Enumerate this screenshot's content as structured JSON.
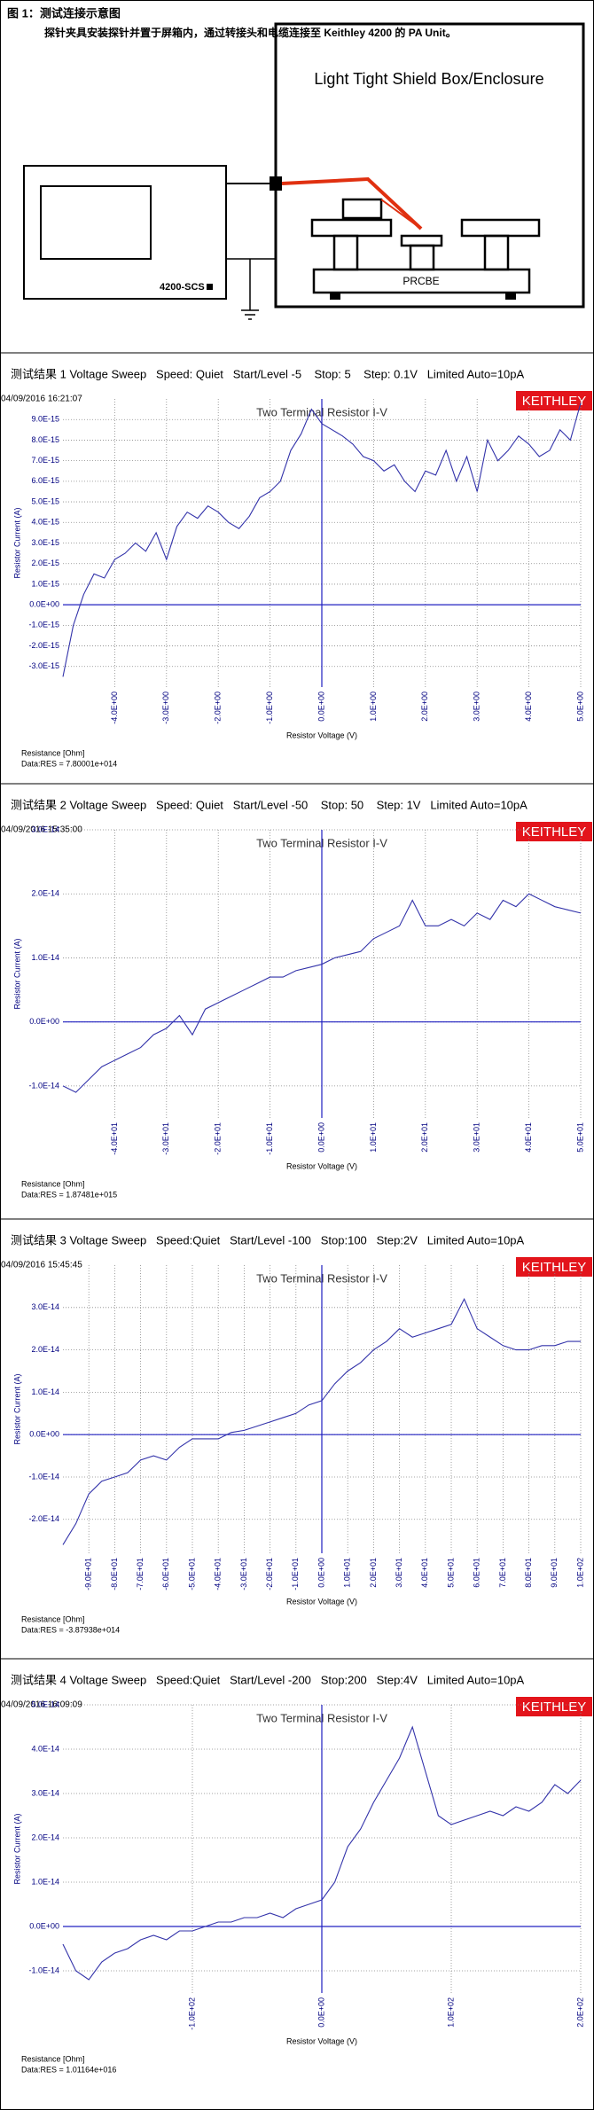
{
  "figure": {
    "title": "图 1：测试连接示意图",
    "caption": "探针夹具安装探针并置于屏箱内，通过转接头和电缆连接至 Keithley 4200 的 PA Unit。",
    "enclosure": "Light Tight Shield Box/Enclosure",
    "instrument": "4200-SCS",
    "stage": "PRCBE"
  },
  "chart_data": [
    {
      "type": "line",
      "header": "测试结果 1 Voltage Sweep   Speed: Quiet   Start/Level -5    Stop: 5    Step: 0.1V   Limited Auto=10pA",
      "timestamp": "04/09/2016 16:21:07",
      "logo": "KEITHLEY",
      "title": "Two Terminal Resistor I-V",
      "x_label": "Resistor Voltage (V)",
      "y_label": "Resistor Current (A)",
      "notes": [
        "Resistance [Ohm]",
        "Data:RES = 7.80001e+014"
      ],
      "color": "#3333aa",
      "grid": true,
      "x": [
        -5,
        -4.8,
        -4.6,
        -4.4,
        -4.2,
        -4,
        -3.8,
        -3.6,
        -3.4,
        -3.2,
        -3,
        -2.8,
        -2.6,
        -2.4,
        -2.2,
        -2,
        -1.8,
        -1.6,
        -1.4,
        -1.2,
        -1,
        -0.8,
        -0.6,
        -0.4,
        -0.2,
        0,
        0.2,
        0.4,
        0.6,
        0.8,
        1,
        1.2,
        1.4,
        1.6,
        1.8,
        2,
        2.2,
        2.4,
        2.6,
        2.8,
        3,
        3.2,
        3.4,
        3.6,
        3.8,
        4,
        4.2,
        4.4,
        4.6,
        4.8,
        5
      ],
      "values": [
        -3.5e-15,
        -1e-15,
        5e-16,
        1.5e-15,
        1.3e-15,
        2.2e-15,
        2.5e-15,
        3e-15,
        2.6e-15,
        3.5e-15,
        2.2e-15,
        3.8e-15,
        4.5e-15,
        4.2e-15,
        4.8e-15,
        4.5e-15,
        4e-15,
        3.7e-15,
        4.3e-15,
        5.2e-15,
        5.5e-15,
        6e-15,
        7.5e-15,
        8.3e-15,
        9.5e-15,
        8.8e-15,
        8.5e-15,
        8.2e-15,
        7.8e-15,
        7.2e-15,
        7e-15,
        6.5e-15,
        6.8e-15,
        6e-15,
        5.5e-15,
        6.5e-15,
        6.3e-15,
        7.5e-15,
        6e-15,
        7.2e-15,
        5.5e-15,
        8e-15,
        7e-15,
        7.5e-15,
        8.2e-15,
        7.8e-15,
        7.2e-15,
        7.5e-15,
        8.5e-15,
        8e-15,
        9.8e-15
      ],
      "xlim": [
        -5,
        5
      ],
      "ylim": [
        -4e-15,
        1e-14
      ],
      "xticks": [
        {
          "value": -4,
          "label": "-4.0E+00"
        },
        {
          "value": -3,
          "label": "-3.0E+00"
        },
        {
          "value": -2,
          "label": "-2.0E+00"
        },
        {
          "value": -1,
          "label": "-1.0E+00"
        },
        {
          "value": 0,
          "label": "0.0E+00"
        },
        {
          "value": 1,
          "label": "1.0E+00"
        },
        {
          "value": 2,
          "label": "2.0E+00"
        },
        {
          "value": 3,
          "label": "3.0E+00"
        },
        {
          "value": 4,
          "label": "4.0E+00"
        },
        {
          "value": 5,
          "label": "5.0E+00"
        }
      ],
      "yticks": [
        {
          "value": -3e-15,
          "label": "-3.0E-15"
        },
        {
          "value": -2e-15,
          "label": "-2.0E-15"
        },
        {
          "value": -1e-15,
          "label": "-1.0E-15"
        },
        {
          "value": 0,
          "label": "0.0E+00"
        },
        {
          "value": 1e-15,
          "label": "1.0E-15"
        },
        {
          "value": 2e-15,
          "label": "2.0E-15"
        },
        {
          "value": 3e-15,
          "label": "3.0E-15"
        },
        {
          "value": 4e-15,
          "label": "4.0E-15"
        },
        {
          "value": 5e-15,
          "label": "5.0E-15"
        },
        {
          "value": 6e-15,
          "label": "6.0E-15"
        },
        {
          "value": 7e-15,
          "label": "7.0E-15"
        },
        {
          "value": 8e-15,
          "label": "8.0E-15"
        },
        {
          "value": 9e-15,
          "label": "9.0E-15"
        }
      ]
    },
    {
      "type": "line",
      "header": "测试结果 2 Voltage Sweep   Speed: Quiet   Start/Level -50    Stop: 50    Step: 1V   Limited Auto=10pA",
      "timestamp": "04/09/2016 15:35:00",
      "logo": "KEITHLEY",
      "title": "Two Terminal Resistor I-V",
      "x_label": "Resistor Voltage (V)",
      "y_label": "Resistor Current (A)",
      "notes": [
        "Resistance [Ohm]",
        "Data:RES = 1.87481e+015"
      ],
      "color": "#3333aa",
      "grid": true,
      "x": [
        -50,
        -47.5,
        -45,
        -42.5,
        -40,
        -37.5,
        -35,
        -32.5,
        -30,
        -27.5,
        -25,
        -22.5,
        -20,
        -17.5,
        -15,
        -12.5,
        -10,
        -7.5,
        -5,
        -2.5,
        0,
        2.5,
        5,
        7.5,
        10,
        12.5,
        15,
        17.5,
        20,
        22.5,
        25,
        27.5,
        30,
        32.5,
        35,
        37.5,
        40,
        42.5,
        45,
        47.5,
        50
      ],
      "values": [
        -1e-14,
        -1.1e-14,
        -9e-15,
        -7e-15,
        -6e-15,
        -5e-15,
        -4e-15,
        -2e-15,
        -1e-15,
        1e-15,
        -2e-15,
        2e-15,
        3e-15,
        4e-15,
        5e-15,
        6e-15,
        7e-15,
        7e-15,
        8e-15,
        8.5e-15,
        9e-15,
        1e-14,
        1.05e-14,
        1.1e-14,
        1.3e-14,
        1.4e-14,
        1.5e-14,
        1.9e-14,
        1.5e-14,
        1.5e-14,
        1.6e-14,
        1.5e-14,
        1.7e-14,
        1.6e-14,
        1.9e-14,
        1.8e-14,
        2e-14,
        1.9e-14,
        1.8e-14,
        1.75e-14,
        1.7e-14
      ],
      "xlim": [
        -50,
        50
      ],
      "ylim": [
        -1.5e-14,
        3e-14
      ],
      "xticks": [
        {
          "value": -40,
          "label": "-4.0E+01"
        },
        {
          "value": -30,
          "label": "-3.0E+01"
        },
        {
          "value": -20,
          "label": "-2.0E+01"
        },
        {
          "value": -10,
          "label": "-1.0E+01"
        },
        {
          "value": 0,
          "label": "0.0E+00"
        },
        {
          "value": 10,
          "label": "1.0E+01"
        },
        {
          "value": 20,
          "label": "2.0E+01"
        },
        {
          "value": 30,
          "label": "3.0E+01"
        },
        {
          "value": 40,
          "label": "4.0E+01"
        },
        {
          "value": 50,
          "label": "5.0E+01"
        }
      ],
      "yticks": [
        {
          "value": -1e-14,
          "label": "-1.0E-14"
        },
        {
          "value": 0,
          "label": "0.0E+00"
        },
        {
          "value": 1e-14,
          "label": "1.0E-14"
        },
        {
          "value": 2e-14,
          "label": "2.0E-14"
        },
        {
          "value": 3e-14,
          "label": "3.0E-14"
        }
      ]
    },
    {
      "type": "line",
      "header": "测试结果 3 Voltage Sweep   Speed:Quiet   Start/Level -100   Stop:100   Step:2V   Limited Auto=10pA",
      "timestamp": "04/09/2016 15:45:45",
      "logo": "KEITHLEY",
      "title": "Two Terminal Resistor I-V",
      "x_label": "Resistor Voltage (V)",
      "y_label": "Resistor Current (A)",
      "notes": [
        "Resistance [Ohm]",
        "Data:RES = -3.87938e+014"
      ],
      "color": "#3333aa",
      "grid": true,
      "x": [
        -100,
        -95,
        -90,
        -85,
        -80,
        -75,
        -70,
        -65,
        -60,
        -55,
        -50,
        -45,
        -40,
        -35,
        -30,
        -25,
        -20,
        -15,
        -10,
        -5,
        0,
        5,
        10,
        15,
        20,
        25,
        30,
        35,
        40,
        45,
        50,
        55,
        60,
        65,
        70,
        75,
        80,
        85,
        90,
        95,
        100
      ],
      "values": [
        -2.6e-14,
        -2.1e-14,
        -1.4e-14,
        -1.1e-14,
        -1e-14,
        -9e-15,
        -6e-15,
        -5e-15,
        -6e-15,
        -3e-15,
        -1e-15,
        -1e-15,
        -1e-15,
        5e-16,
        1e-15,
        2e-15,
        3e-15,
        4e-15,
        5e-15,
        7e-15,
        8e-15,
        1.2e-14,
        1.5e-14,
        1.7e-14,
        2e-14,
        2.2e-14,
        2.5e-14,
        2.3e-14,
        2.4e-14,
        2.5e-14,
        2.6e-14,
        3.2e-14,
        2.5e-14,
        2.3e-14,
        2.1e-14,
        2e-14,
        2e-14,
        2.1e-14,
        2.1e-14,
        2.2e-14,
        2.2e-14
      ],
      "xlim": [
        -100,
        100
      ],
      "ylim": [
        -2.8e-14,
        4e-14
      ],
      "xticks": [
        {
          "value": -90,
          "label": "-9.0E+01"
        },
        {
          "value": -80,
          "label": "-8.0E+01"
        },
        {
          "value": -70,
          "label": "-7.0E+01"
        },
        {
          "value": -60,
          "label": "-6.0E+01"
        },
        {
          "value": -50,
          "label": "-5.0E+01"
        },
        {
          "value": -40,
          "label": "-4.0E+01"
        },
        {
          "value": -30,
          "label": "-3.0E+01"
        },
        {
          "value": -20,
          "label": "-2.0E+01"
        },
        {
          "value": -10,
          "label": "-1.0E+01"
        },
        {
          "value": 0,
          "label": "0.0E+00"
        },
        {
          "value": 10,
          "label": "1.0E+01"
        },
        {
          "value": 20,
          "label": "2.0E+01"
        },
        {
          "value": 30,
          "label": "3.0E+01"
        },
        {
          "value": 40,
          "label": "4.0E+01"
        },
        {
          "value": 50,
          "label": "5.0E+01"
        },
        {
          "value": 60,
          "label": "6.0E+01"
        },
        {
          "value": 70,
          "label": "7.0E+01"
        },
        {
          "value": 80,
          "label": "8.0E+01"
        },
        {
          "value": 90,
          "label": "9.0E+01"
        },
        {
          "value": 100,
          "label": "1.0E+02"
        }
      ],
      "yticks": [
        {
          "value": -2e-14,
          "label": "-2.0E-14"
        },
        {
          "value": -1e-14,
          "label": "-1.0E-14"
        },
        {
          "value": 0,
          "label": "0.0E+00"
        },
        {
          "value": 1e-14,
          "label": "1.0E-14"
        },
        {
          "value": 2e-14,
          "label": "2.0E-14"
        },
        {
          "value": 3e-14,
          "label": "3.0E-14"
        }
      ]
    },
    {
      "type": "line",
      "header": "测试结果 4 Voltage Sweep   Speed:Quiet   Start/Level -200   Stop:200   Step:4V   Limited Auto=10pA",
      "timestamp": "04/09/2016 16:09:09",
      "logo": "KEITHLEY",
      "title": "Two Terminal Resistor I-V",
      "x_label": "Resistor Voltage (V)",
      "y_label": "Resistor Current (A)",
      "notes": [
        "Resistance [Ohm]",
        "Data:RES = 1.01164e+016"
      ],
      "color": "#3333aa",
      "grid": true,
      "x": [
        -200,
        -190,
        -180,
        -170,
        -160,
        -150,
        -140,
        -130,
        -120,
        -110,
        -100,
        -90,
        -80,
        -70,
        -60,
        -50,
        -40,
        -30,
        -20,
        -10,
        0,
        10,
        20,
        30,
        40,
        50,
        60,
        70,
        80,
        90,
        100,
        110,
        120,
        130,
        140,
        150,
        160,
        170,
        180,
        190,
        200
      ],
      "values": [
        -4e-15,
        -1e-14,
        -1.2e-14,
        -8e-15,
        -6e-15,
        -5e-15,
        -3e-15,
        -2e-15,
        -3e-15,
        -1e-15,
        -1e-15,
        0,
        1e-15,
        1e-15,
        2e-15,
        2e-15,
        3e-15,
        2e-15,
        4e-15,
        5e-15,
        6e-15,
        1e-14,
        1.8e-14,
        2.2e-14,
        2.8e-14,
        3.3e-14,
        3.8e-14,
        4.5e-14,
        3.5e-14,
        2.5e-14,
        2.3e-14,
        2.4e-14,
        2.5e-14,
        2.6e-14,
        2.5e-14,
        2.7e-14,
        2.6e-14,
        2.8e-14,
        3.2e-14,
        3e-14,
        3.3e-14
      ],
      "xlim": [
        -200,
        200
      ],
      "ylim": [
        -1.5e-14,
        5e-14
      ],
      "xticks": [
        {
          "value": -100,
          "label": "-1.0E+02"
        },
        {
          "value": 0,
          "label": "0.0E+00"
        },
        {
          "value": 100,
          "label": "1.0E+02"
        },
        {
          "value": 200,
          "label": "2.0E+02"
        }
      ],
      "yticks": [
        {
          "value": -1e-14,
          "label": "-1.0E-14"
        },
        {
          "value": 0,
          "label": "0.0E+00"
        },
        {
          "value": 1e-14,
          "label": "1.0E-14"
        },
        {
          "value": 2e-14,
          "label": "2.0E-14"
        },
        {
          "value": 3e-14,
          "label": "3.0E-14"
        },
        {
          "value": 4e-14,
          "label": "4.0E-14"
        },
        {
          "value": 5e-14,
          "label": "5.0E-14"
        }
      ]
    }
  ]
}
